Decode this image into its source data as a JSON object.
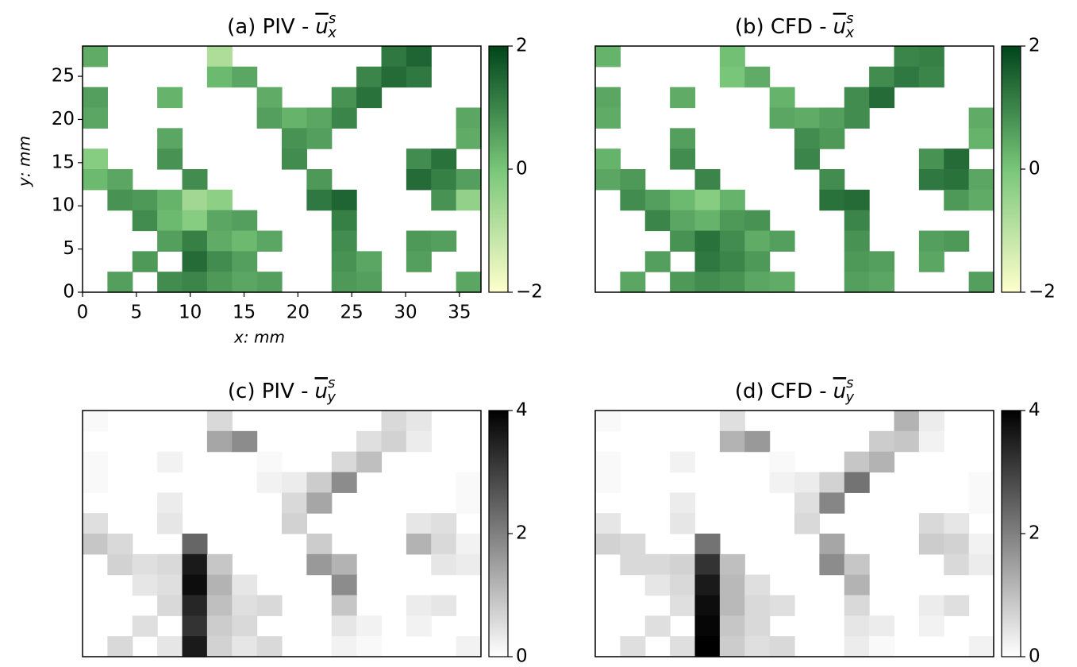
{
  "chart_data": [
    {
      "type": "heatmap",
      "title": "(a) PIV -",
      "symbol": "u",
      "superscript": "s",
      "subscript": "x",
      "xlabel": "x: mm",
      "ylabel": "y: mm",
      "xlim": [
        0,
        37
      ],
      "ylim": [
        0,
        28.5
      ],
      "xticks": [
        0,
        5,
        10,
        15,
        20,
        25,
        30,
        35
      ],
      "yticks": [
        0,
        5,
        10,
        15,
        20,
        25
      ],
      "clim": [
        -2,
        2
      ],
      "cticks": [
        {
          "value": -2,
          "label": "−2"
        },
        0,
        2
      ],
      "colors": [
        "#ffffcc",
        "#78c679",
        "#00441b"
      ],
      "z": [
        [
          0.4,
          null,
          null,
          null,
          null,
          -0.8,
          null,
          null,
          null,
          null,
          null,
          null,
          1.2,
          1.5,
          null,
          null
        ],
        [
          null,
          null,
          null,
          null,
          null,
          0.2,
          0.5,
          null,
          null,
          null,
          null,
          1.0,
          1.4,
          1.2,
          null,
          null
        ],
        [
          0.6,
          null,
          null,
          0.3,
          null,
          null,
          null,
          0.4,
          null,
          null,
          0.8,
          1.3,
          null,
          null,
          null,
          null
        ],
        [
          0.5,
          null,
          null,
          null,
          null,
          null,
          null,
          0.6,
          0.3,
          0.5,
          1.0,
          null,
          null,
          null,
          null,
          0.5
        ],
        [
          null,
          null,
          null,
          0.5,
          null,
          null,
          null,
          null,
          0.8,
          0.6,
          null,
          null,
          null,
          null,
          null,
          0.4
        ],
        [
          -0.2,
          null,
          null,
          0.8,
          null,
          null,
          null,
          null,
          0.9,
          null,
          null,
          null,
          null,
          0.9,
          1.3,
          null
        ],
        [
          0.2,
          0.5,
          null,
          null,
          0.9,
          null,
          null,
          null,
          null,
          0.7,
          null,
          null,
          null,
          1.4,
          1.1,
          0.6
        ],
        [
          null,
          0.8,
          0.7,
          0.3,
          -0.6,
          -0.3,
          null,
          null,
          null,
          1.2,
          1.5,
          null,
          null,
          null,
          0.8,
          -0.4
        ],
        [
          null,
          null,
          0.9,
          0.2,
          -0.2,
          0.5,
          0.6,
          null,
          null,
          null,
          1.1,
          null,
          null,
          null,
          null,
          null
        ],
        [
          null,
          null,
          null,
          0.6,
          1.1,
          0.4,
          0.2,
          0.5,
          null,
          null,
          0.9,
          null,
          null,
          0.7,
          0.6,
          null
        ],
        [
          null,
          null,
          0.7,
          null,
          1.4,
          0.9,
          0.6,
          null,
          null,
          null,
          0.8,
          0.5,
          null,
          0.6,
          null,
          null
        ],
        [
          null,
          0.6,
          null,
          0.9,
          1.0,
          0.7,
          0.5,
          0.6,
          null,
          null,
          0.7,
          0.6,
          null,
          null,
          null,
          0.5
        ]
      ]
    },
    {
      "type": "heatmap",
      "title": "(b) CFD -",
      "symbol": "u",
      "superscript": "s",
      "subscript": "x",
      "clim": [
        -2,
        2
      ],
      "cticks": [
        {
          "value": -2,
          "label": "−2"
        },
        0,
        2
      ],
      "colors": [
        "#ffffcc",
        "#78c679",
        "#00441b"
      ],
      "z": [
        [
          0.3,
          null,
          null,
          null,
          null,
          0.1,
          null,
          null,
          null,
          null,
          null,
          null,
          1.0,
          1.1,
          null,
          null
        ],
        [
          null,
          null,
          null,
          null,
          null,
          0.0,
          0.4,
          null,
          null,
          null,
          null,
          0.9,
          1.2,
          1.0,
          null,
          null
        ],
        [
          0.5,
          null,
          null,
          0.4,
          null,
          null,
          null,
          0.3,
          null,
          null,
          0.9,
          1.4,
          null,
          null,
          null,
          null
        ],
        [
          0.4,
          null,
          null,
          null,
          null,
          null,
          null,
          0.5,
          0.4,
          0.6,
          0.9,
          null,
          null,
          null,
          null,
          0.4
        ],
        [
          null,
          null,
          null,
          0.6,
          null,
          null,
          null,
          null,
          0.9,
          0.7,
          null,
          null,
          null,
          null,
          null,
          0.3
        ],
        [
          0.3,
          null,
          null,
          0.9,
          null,
          null,
          null,
          null,
          1.0,
          null,
          null,
          null,
          null,
          0.8,
          1.4,
          null
        ],
        [
          0.5,
          0.7,
          null,
          null,
          1.0,
          null,
          null,
          null,
          null,
          0.9,
          null,
          null,
          null,
          1.2,
          1.3,
          0.5
        ],
        [
          null,
          0.9,
          0.6,
          0.2,
          -0.2,
          0.3,
          null,
          null,
          null,
          1.3,
          1.4,
          null,
          null,
          null,
          0.7,
          0.4
        ],
        [
          null,
          null,
          1.0,
          0.5,
          0.3,
          0.7,
          0.8,
          null,
          null,
          null,
          1.0,
          null,
          null,
          null,
          null,
          null
        ],
        [
          null,
          null,
          null,
          0.8,
          1.3,
          0.9,
          0.4,
          0.6,
          null,
          null,
          0.8,
          null,
          null,
          0.6,
          0.7,
          null
        ],
        [
          null,
          null,
          0.6,
          null,
          1.2,
          1.0,
          0.7,
          null,
          null,
          null,
          0.7,
          0.6,
          null,
          0.5,
          null,
          null
        ],
        [
          null,
          0.5,
          null,
          0.7,
          0.9,
          0.8,
          0.5,
          0.4,
          null,
          null,
          0.6,
          0.5,
          null,
          null,
          null,
          0.6
        ]
      ]
    },
    {
      "type": "heatmap",
      "title": "(c) PIV -",
      "symbol": "u",
      "superscript": "s",
      "subscript": "y",
      "clim": [
        0,
        4
      ],
      "cticks": [
        0,
        2,
        4
      ],
      "colors": [
        "#ffffff",
        "#000000"
      ],
      "z": [
        [
          0.1,
          null,
          null,
          null,
          null,
          0.6,
          null,
          null,
          null,
          null,
          null,
          null,
          0.6,
          0.4,
          null,
          null
        ],
        [
          null,
          null,
          null,
          null,
          null,
          1.4,
          1.8,
          null,
          null,
          null,
          null,
          0.5,
          0.7,
          0.3,
          null,
          null
        ],
        [
          0.1,
          null,
          null,
          0.2,
          null,
          null,
          null,
          0.1,
          null,
          null,
          0.6,
          1.0,
          null,
          null,
          null,
          null
        ],
        [
          0.1,
          null,
          null,
          null,
          null,
          null,
          null,
          0.2,
          0.3,
          0.8,
          1.8,
          null,
          null,
          null,
          null,
          0.1
        ],
        [
          null,
          null,
          null,
          0.3,
          null,
          null,
          null,
          null,
          0.6,
          1.4,
          null,
          null,
          null,
          null,
          null,
          0.1
        ],
        [
          0.5,
          null,
          null,
          0.4,
          null,
          null,
          null,
          null,
          0.7,
          null,
          null,
          null,
          null,
          0.4,
          0.5,
          null
        ],
        [
          0.9,
          0.6,
          null,
          null,
          2.4,
          null,
          null,
          null,
          null,
          0.8,
          null,
          null,
          null,
          1.2,
          0.6,
          0.2
        ],
        [
          null,
          0.7,
          0.5,
          0.6,
          3.6,
          0.9,
          null,
          null,
          null,
          1.6,
          1.2,
          null,
          null,
          null,
          0.4,
          0.3
        ],
        [
          null,
          null,
          0.4,
          0.5,
          3.8,
          1.2,
          0.4,
          null,
          null,
          null,
          1.8,
          null,
          null,
          null,
          null,
          null
        ],
        [
          null,
          null,
          null,
          0.6,
          3.4,
          1.0,
          0.5,
          0.6,
          null,
          null,
          0.9,
          null,
          null,
          0.3,
          0.4,
          null
        ],
        [
          null,
          null,
          0.5,
          null,
          3.2,
          0.8,
          0.6,
          null,
          null,
          null,
          0.4,
          0.2,
          null,
          0.2,
          null,
          null
        ],
        [
          null,
          0.6,
          null,
          0.4,
          3.6,
          0.7,
          0.4,
          0.6,
          null,
          null,
          0.2,
          0.1,
          null,
          null,
          null,
          0.2
        ]
      ]
    },
    {
      "type": "heatmap",
      "title": "(d) CFD -",
      "symbol": "u",
      "superscript": "s",
      "subscript": "y",
      "clim": [
        0,
        4
      ],
      "cticks": [
        0,
        2,
        4
      ],
      "colors": [
        "#ffffff",
        "#000000"
      ],
      "z": [
        [
          0.1,
          null,
          null,
          null,
          null,
          0.5,
          null,
          null,
          null,
          null,
          null,
          null,
          1.2,
          0.3,
          null,
          null
        ],
        [
          null,
          null,
          null,
          null,
          null,
          1.2,
          1.6,
          null,
          null,
          null,
          null,
          0.8,
          0.9,
          0.2,
          null,
          null
        ],
        [
          0.1,
          null,
          null,
          0.2,
          null,
          null,
          null,
          0.1,
          null,
          null,
          0.9,
          1.2,
          null,
          null,
          null,
          null
        ],
        [
          0.1,
          null,
          null,
          null,
          null,
          null,
          null,
          0.2,
          0.3,
          0.7,
          2.2,
          null,
          null,
          null,
          null,
          0.1
        ],
        [
          null,
          null,
          null,
          0.3,
          null,
          null,
          null,
          null,
          0.5,
          1.9,
          null,
          null,
          null,
          null,
          null,
          0.1
        ],
        [
          0.4,
          null,
          null,
          0.4,
          null,
          null,
          null,
          null,
          0.6,
          null,
          null,
          null,
          null,
          0.6,
          0.4,
          null
        ],
        [
          0.7,
          0.6,
          null,
          null,
          2.2,
          null,
          null,
          null,
          null,
          1.4,
          null,
          null,
          null,
          0.8,
          0.7,
          0.2
        ],
        [
          null,
          0.6,
          0.6,
          0.7,
          3.2,
          1.0,
          null,
          null,
          null,
          1.8,
          0.9,
          null,
          null,
          null,
          0.6,
          0.3
        ],
        [
          null,
          null,
          0.4,
          0.6,
          3.6,
          1.1,
          0.5,
          null,
          null,
          null,
          1.2,
          null,
          null,
          null,
          null,
          null
        ],
        [
          null,
          null,
          null,
          0.5,
          3.8,
          1.1,
          0.6,
          0.5,
          null,
          null,
          0.6,
          null,
          null,
          0.3,
          0.5,
          null
        ],
        [
          null,
          null,
          0.5,
          null,
          3.9,
          0.9,
          0.6,
          null,
          null,
          null,
          0.4,
          0.3,
          null,
          0.2,
          null,
          null
        ],
        [
          null,
          0.5,
          null,
          0.5,
          4.0,
          0.8,
          0.5,
          0.6,
          null,
          null,
          0.3,
          0.1,
          null,
          null,
          null,
          0.2
        ]
      ]
    }
  ]
}
